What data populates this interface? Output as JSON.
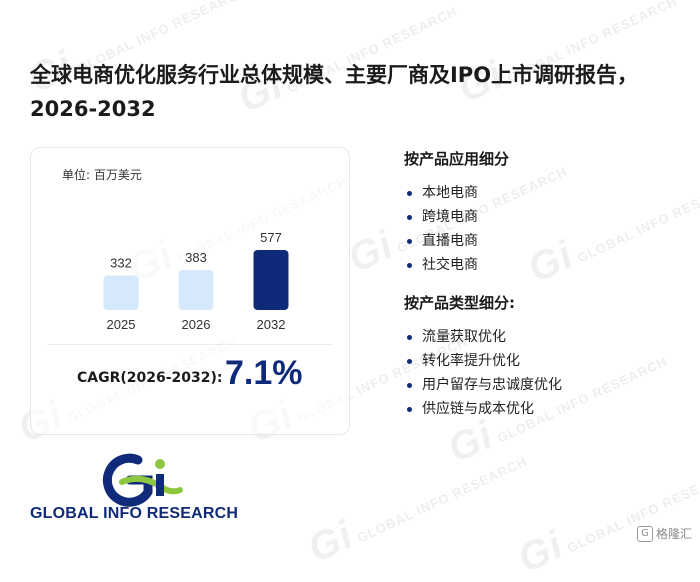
{
  "title": "全球电商优化服务行业总体规模、主要厂商及IPO上市调研报告，2026-2032",
  "watermark_text": "GLOBAL INFO RESEARCH",
  "chart_data": {
    "type": "bar",
    "unit_label": "单位: 百万美元",
    "categories": [
      "2025",
      "2026",
      "2032"
    ],
    "values": [
      332,
      383,
      577
    ],
    "value_labels": [
      "332",
      "383",
      "577"
    ],
    "bar_colors": [
      "#d6e8fb",
      "#d6e8fb",
      "#102a7a"
    ],
    "ylim": [
      0,
      577
    ]
  },
  "cagr": {
    "label": "CAGR(2026-2032):",
    "value": "7.1%"
  },
  "segments": {
    "application": {
      "heading": "按产品应用细分",
      "items": [
        "本地电商",
        "跨境电商",
        "直播电商",
        "社交电商"
      ]
    },
    "type": {
      "heading": "按产品类型细分:",
      "items": [
        "流量获取优化",
        "转化率提升优化",
        "用户留存与忠诚度优化",
        "供应链与成本优化"
      ]
    }
  },
  "logo": {
    "text": "GLOBAL INFO RESEARCH",
    "mark": "Gi"
  },
  "brand": {
    "label": "格隆汇",
    "icon": "G"
  },
  "colors": {
    "accent": "#102a7a",
    "light_bar": "#d6e8fb",
    "logo_green": "#8dc63f"
  }
}
